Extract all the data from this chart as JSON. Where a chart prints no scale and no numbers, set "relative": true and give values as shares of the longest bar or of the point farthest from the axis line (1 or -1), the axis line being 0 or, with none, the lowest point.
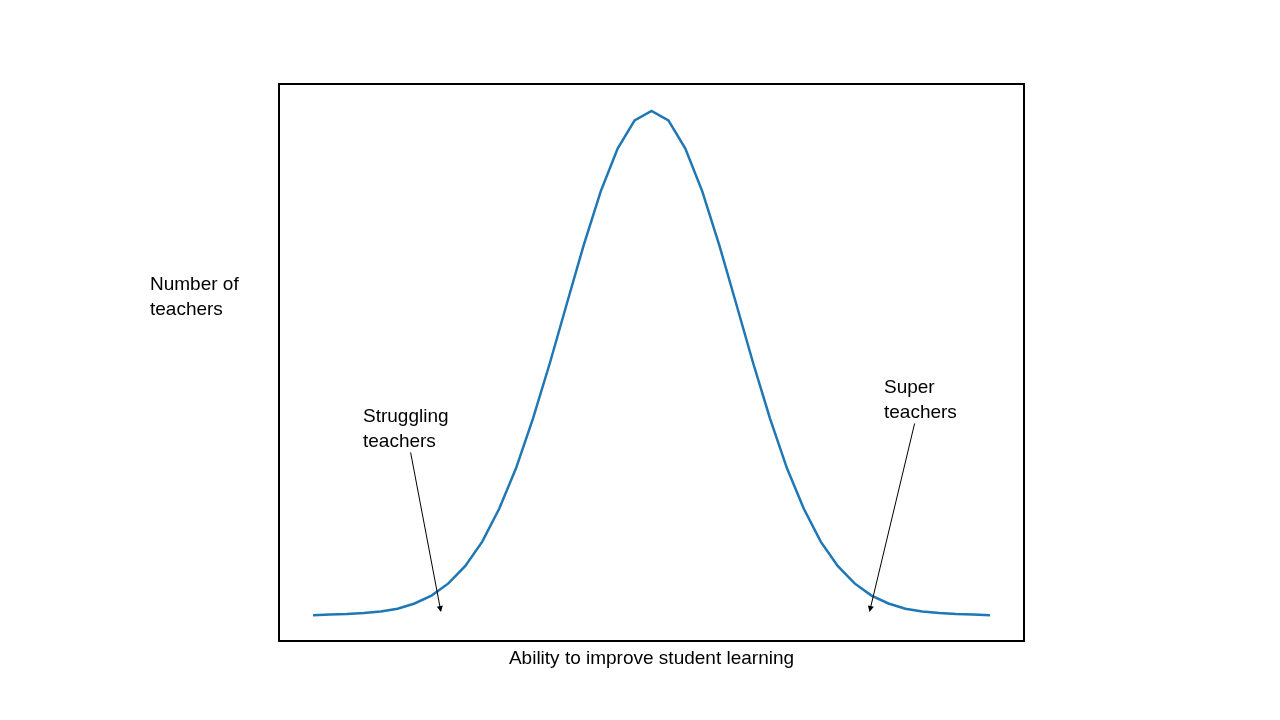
{
  "chart_data": {
    "type": "line",
    "relative": true,
    "xlabel": "Ability to improve student learning",
    "ylabel": "Number of teachers",
    "categories": [
      null,
      null,
      null,
      null,
      null,
      null,
      null,
      null,
      null,
      null,
      null,
      null,
      null,
      null,
      null,
      null,
      null,
      null,
      null,
      null,
      null,
      null,
      null,
      null,
      null,
      null,
      null,
      null,
      null,
      null,
      null,
      null,
      null,
      null,
      null,
      null,
      null,
      null,
      null,
      null,
      null
    ],
    "series": [
      {
        "color": "#1f77b4",
        "values": [
          0.047,
          0.048,
          0.049,
          0.051,
          0.054,
          0.059,
          0.069,
          0.084,
          0.107,
          0.14,
          0.186,
          0.248,
          0.325,
          0.419,
          0.524,
          0.636,
          0.747,
          0.848,
          0.929,
          0.982,
          1,
          0.982,
          0.929,
          0.848,
          0.747,
          0.636,
          0.524,
          0.419,
          0.325,
          0.248,
          0.186,
          0.14,
          0.107,
          0.084,
          0.069,
          0.059,
          0.054,
          0.051,
          0.049,
          0.048,
          0.047
        ]
      }
    ],
    "annotations": [
      "Struggling teachers",
      "Super teachers"
    ],
    "legend": false,
    "marker": "none",
    "line_style": "solid"
  }
}
